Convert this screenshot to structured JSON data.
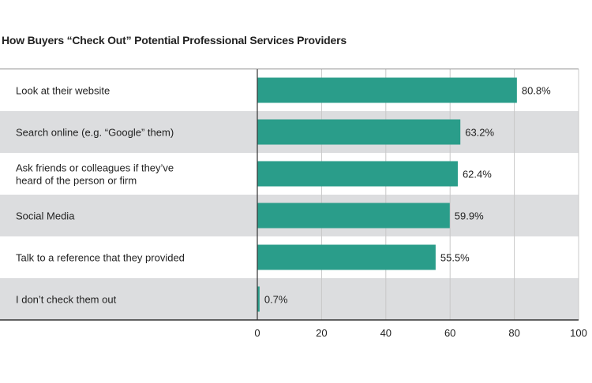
{
  "chart_data": {
    "type": "bar",
    "orientation": "horizontal",
    "title": "How Buyers “Check Out” Potential Professional Services Providers",
    "categories": [
      [
        "Look at their website"
      ],
      [
        "Search online (e.g. “Google” them)"
      ],
      [
        "Ask friends or colleagues if they’ve",
        "heard of the person or firm"
      ],
      [
        "Social Media"
      ],
      [
        "Talk to a reference that they provided"
      ],
      [
        "I don’t check them out"
      ]
    ],
    "values": [
      80.8,
      63.2,
      62.4,
      59.9,
      55.5,
      0.7
    ],
    "data_labels": [
      "80.8%",
      "63.2%",
      "62.4%",
      "59.9%",
      "55.5%",
      "0.7%"
    ],
    "xlim": [
      0,
      100
    ],
    "xticks": [
      0,
      20,
      40,
      60,
      80,
      100
    ],
    "xtick_labels": [
      "0",
      "20",
      "40",
      "60",
      "80",
      "100"
    ],
    "grid": true,
    "colors": {
      "bar": "#2a9d8a",
      "row_alt": "#dcdddf",
      "grid": "#c8c8c8",
      "axis": "#333333"
    }
  }
}
